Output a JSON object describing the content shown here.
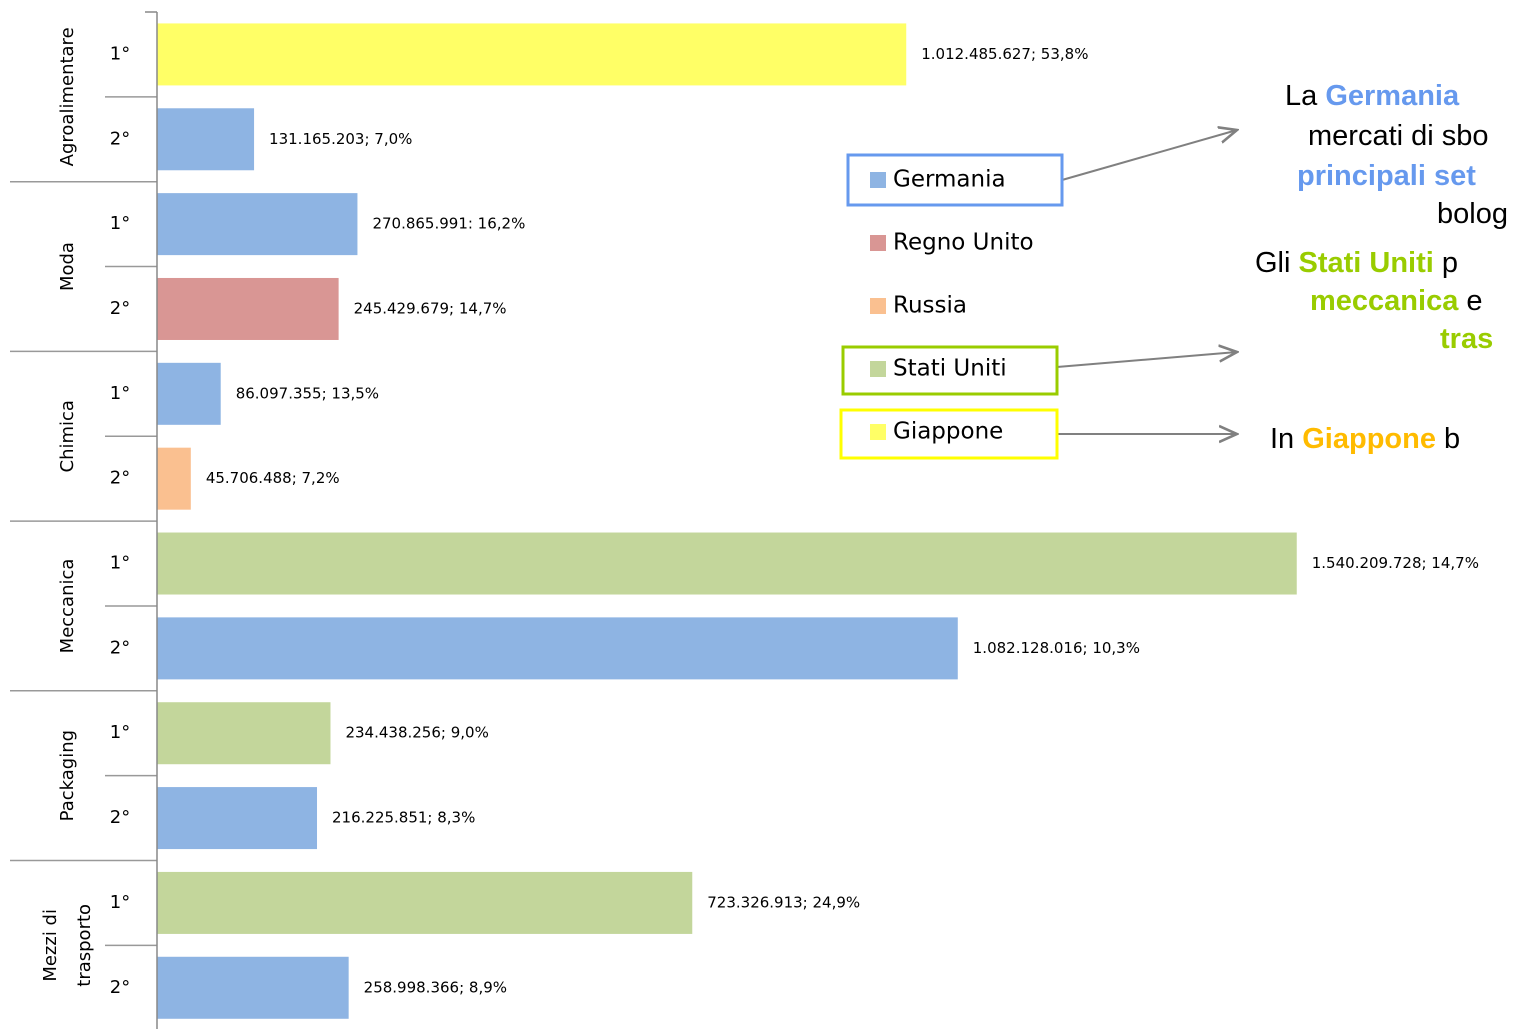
{
  "chart_data": {
    "type": "bar",
    "orientation": "horizontal",
    "groups": [
      {
        "lines": [
          "Agroalimentare"
        ]
      },
      {
        "lines": [
          "Moda"
        ]
      },
      {
        "lines": [
          "Chimica"
        ]
      },
      {
        "lines": [
          "Meccanica"
        ]
      },
      {
        "lines": [
          "Packaging"
        ]
      },
      {
        "lines": [
          "Mezzi di",
          "trasporto"
        ]
      }
    ],
    "categories": [
      "1°",
      "2°",
      "1°",
      "2°",
      "1°",
      "2°",
      "1°",
      "2°",
      "1°",
      "2°",
      "1°",
      "2°"
    ],
    "values": [
      1012485627,
      131165203,
      270865991,
      245429679,
      86097355,
      45706488,
      1540209728,
      1082128016,
      234438256,
      216225851,
      723326913,
      258998366
    ],
    "value_labels": [
      "1.012.485.627; 53,8%",
      "131.165.203; 7,0%",
      "270.865.991: 16,2%",
      "245.429.679; 14,7%",
      "86.097.355; 13,5%",
      "45.706.488; 7,2%",
      "1.540.209.728; 14,7%",
      "1.082.128.016; 10,3%",
      "234.438.256; 9,0%",
      "216.225.851; 8,3%",
      "723.326.913; 24,9%",
      "258.998.366; 8,9%"
    ],
    "colors": [
      "#ffff66",
      "#8eb4e3",
      "#8eb4e3",
      "#d99694",
      "#8eb4e3",
      "#fac090",
      "#c3d69b",
      "#8eb4e3",
      "#c3d69b",
      "#8eb4e3",
      "#c3d69b",
      "#8eb4e3"
    ],
    "xlim": [
      0,
      1600000000
    ],
    "legend": [
      {
        "name": "Germania",
        "color": "#8eb4e3",
        "highlight": "#6699ee"
      },
      {
        "name": "Regno Unito",
        "color": "#d99694"
      },
      {
        "name": "Russia",
        "color": "#fac090"
      },
      {
        "name": "Stati Uniti",
        "color": "#c3d69b",
        "highlight": "#99cc00"
      },
      {
        "name": "Giappone",
        "color": "#ffff66",
        "highlight": "#ffff00"
      }
    ],
    "annotations": [
      [
        {
          "text": "La "
        },
        {
          "text": "Germania",
          "color": "#6699ee",
          "bold": true
        }
      ],
      [
        {
          "text": "mercati di sbo"
        }
      ],
      [
        {
          "text": "principali set",
          "color": "#6699ee",
          "bold": true
        }
      ],
      [
        {
          "text": "bolog"
        }
      ],
      [
        {
          "text": "Gli "
        },
        {
          "text": "Stati Uniti",
          "color": "#99cc00",
          "bold": true
        },
        {
          "text": " p"
        }
      ],
      [
        {
          "text": "meccanica",
          "color": "#99cc00",
          "bold": true
        },
        {
          "text": " e"
        }
      ],
      [
        {
          "text": "tras",
          "color": "#99cc00",
          "bold": true
        }
      ],
      [
        {
          "text": "In "
        },
        {
          "text": "Giappone",
          "color": "#ffbb00",
          "bold": true
        },
        {
          "text": " b"
        }
      ]
    ]
  }
}
